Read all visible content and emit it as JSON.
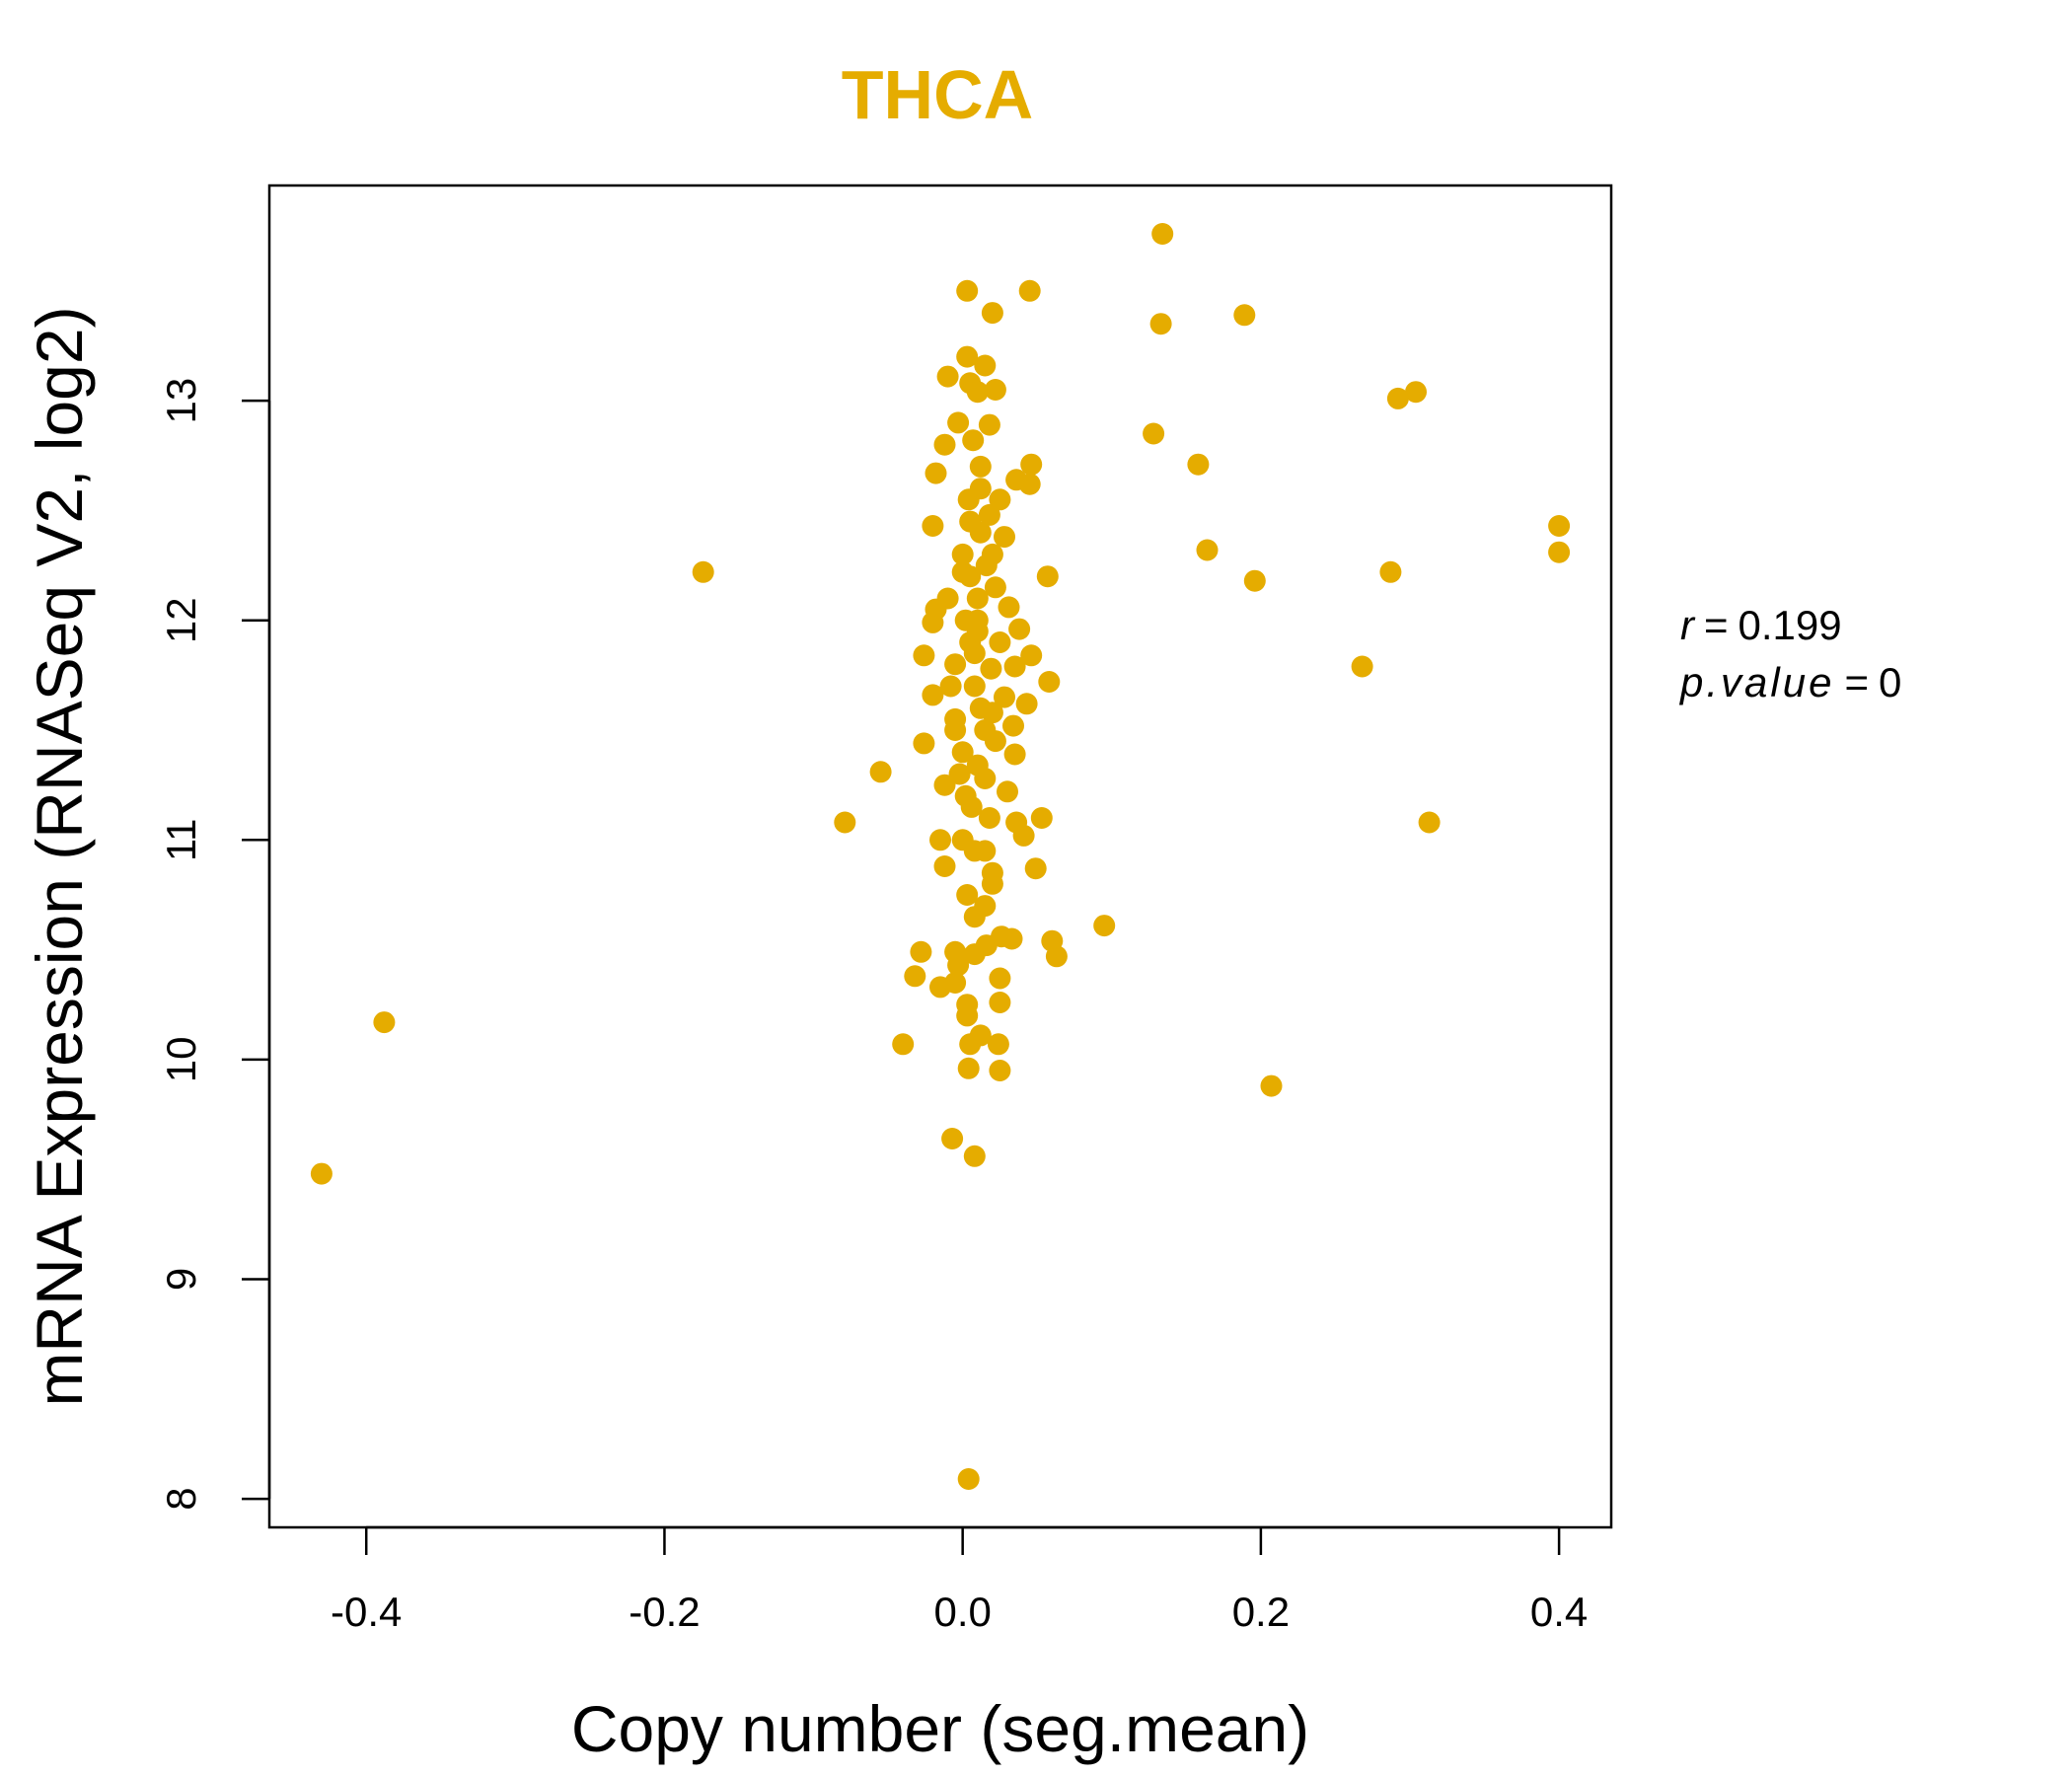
{
  "chart_data": {
    "type": "scatter",
    "title": "THCA",
    "title_color": "#E5AC00",
    "point_color": "#E5AC00",
    "xlabel": "Copy number (seg.mean)",
    "ylabel": "mRNA Expression (RNASeq V2, log2)",
    "xlim": [
      -0.465,
      0.435
    ],
    "ylim": [
      7.87,
      13.98
    ],
    "xticks": [
      -0.4,
      -0.2,
      0.0,
      0.2,
      0.4
    ],
    "xtick_labels": [
      "-0.4",
      "-0.2",
      "0.0",
      "0.2",
      "0.4"
    ],
    "yticks": [
      8,
      9,
      10,
      11,
      12,
      13
    ],
    "ytick_labels": [
      "8",
      "9",
      "10",
      "11",
      "12",
      "13"
    ],
    "grid": false,
    "stats": {
      "r_symbol": "r",
      "r_value": "0.199",
      "p_symbol": "p.value",
      "p_value": "0"
    },
    "points": [
      [
        -0.43,
        9.48
      ],
      [
        -0.388,
        10.17
      ],
      [
        -0.174,
        12.22
      ],
      [
        -0.079,
        11.08
      ],
      [
        -0.055,
        11.31
      ],
      [
        -0.04,
        10.07
      ],
      [
        0.134,
        13.76
      ],
      [
        0.133,
        13.35
      ],
      [
        0.189,
        13.39
      ],
      [
        0.128,
        12.85
      ],
      [
        0.158,
        12.71
      ],
      [
        0.164,
        12.32
      ],
      [
        0.196,
        12.18
      ],
      [
        0.287,
        12.22
      ],
      [
        0.268,
        11.79
      ],
      [
        0.292,
        13.01
      ],
      [
        0.304,
        13.04
      ],
      [
        0.4,
        12.43
      ],
      [
        0.4,
        12.31
      ],
      [
        0.313,
        11.08
      ],
      [
        0.207,
        9.88
      ],
      [
        0.095,
        10.61
      ],
      [
        0.003,
        13.5
      ],
      [
        0.045,
        13.5
      ],
      [
        0.02,
        13.4
      ],
      [
        0.003,
        13.2
      ],
      [
        0.015,
        13.16
      ],
      [
        -0.01,
        13.11
      ],
      [
        0.005,
        13.08
      ],
      [
        0.022,
        13.05
      ],
      [
        0.01,
        13.04
      ],
      [
        -0.003,
        12.9
      ],
      [
        0.018,
        12.89
      ],
      [
        0.007,
        12.82
      ],
      [
        -0.012,
        12.8
      ],
      [
        0.046,
        12.71
      ],
      [
        0.045,
        12.62
      ],
      [
        0.036,
        12.64
      ],
      [
        -0.018,
        12.67
      ],
      [
        0.012,
        12.6
      ],
      [
        0.028,
        12.38
      ],
      [
        0.005,
        12.45
      ],
      [
        0.018,
        12.48
      ],
      [
        -0.02,
        12.43
      ],
      [
        0.057,
        12.2
      ],
      [
        0.022,
        12.15
      ],
      [
        0.0,
        12.22
      ],
      [
        0.031,
        12.06
      ],
      [
        0.01,
        12.1
      ],
      [
        -0.018,
        12.05
      ],
      [
        0.038,
        11.96
      ],
      [
        -0.02,
        11.99
      ],
      [
        0.005,
        11.9
      ],
      [
        0.046,
        11.84
      ],
      [
        -0.026,
        11.84
      ],
      [
        0.019,
        11.78
      ],
      [
        0.035,
        11.79
      ],
      [
        0.058,
        11.72
      ],
      [
        0.008,
        11.7
      ],
      [
        -0.02,
        11.66
      ],
      [
        0.043,
        11.62
      ],
      [
        0.02,
        11.58
      ],
      [
        -0.005,
        11.5
      ],
      [
        0.034,
        11.52
      ],
      [
        0.0,
        11.4
      ],
      [
        0.035,
        11.39
      ],
      [
        -0.026,
        11.44
      ],
      [
        0.01,
        11.34
      ],
      [
        0.03,
        11.22
      ],
      [
        0.015,
        11.28
      ],
      [
        0.053,
        11.1
      ],
      [
        0.036,
        11.08
      ],
      [
        0.041,
        11.02
      ],
      [
        -0.015,
        11.0
      ],
      [
        0.008,
        10.95
      ],
      [
        0.049,
        10.87
      ],
      [
        0.02,
        10.85
      ],
      [
        -0.012,
        10.88
      ],
      [
        0.003,
        10.75
      ],
      [
        0.015,
        10.7
      ],
      [
        0.026,
        10.56
      ],
      [
        0.033,
        10.55
      ],
      [
        0.06,
        10.54
      ],
      [
        0.063,
        10.47
      ],
      [
        0.016,
        10.52
      ],
      [
        -0.005,
        10.49
      ],
      [
        -0.028,
        10.49
      ],
      [
        0.008,
        10.48
      ],
      [
        -0.003,
        10.43
      ],
      [
        -0.032,
        10.38
      ],
      [
        -0.015,
        10.33
      ],
      [
        0.025,
        10.37
      ],
      [
        -0.005,
        10.35
      ],
      [
        0.003,
        10.25
      ],
      [
        0.025,
        10.26
      ],
      [
        0.003,
        10.2
      ],
      [
        0.012,
        10.11
      ],
      [
        0.005,
        10.07
      ],
      [
        0.024,
        10.07
      ],
      [
        0.004,
        9.96
      ],
      [
        0.025,
        9.95
      ],
      [
        -0.007,
        9.64
      ],
      [
        0.008,
        9.56
      ],
      [
        0.004,
        8.09
      ],
      [
        0.0,
        12.3
      ],
      [
        0.005,
        12.2
      ],
      [
        0.01,
        12.0
      ],
      [
        -0.005,
        11.8
      ],
      [
        0.012,
        11.6
      ],
      [
        0.002,
        11.2
      ],
      [
        0.015,
        11.5
      ],
      [
        -0.008,
        11.7
      ],
      [
        0.02,
        12.3
      ],
      [
        0.008,
        11.85
      ],
      [
        0.0,
        11.0
      ],
      [
        0.018,
        11.1
      ],
      [
        -0.01,
        12.1
      ],
      [
        0.025,
        11.9
      ],
      [
        0.004,
        12.55
      ],
      [
        0.012,
        12.4
      ],
      [
        -0.002,
        11.3
      ],
      [
        0.022,
        11.45
      ],
      [
        0.006,
        11.15
      ],
      [
        0.015,
        10.95
      ],
      [
        -0.005,
        11.55
      ],
      [
        0.01,
        11.95
      ],
      [
        0.028,
        11.65
      ],
      [
        0.002,
        12.0
      ],
      [
        0.016,
        12.25
      ],
      [
        -0.012,
        11.25
      ],
      [
        0.02,
        10.8
      ],
      [
        0.008,
        10.65
      ],
      [
        0.012,
        12.7
      ],
      [
        0.025,
        12.55
      ]
    ]
  }
}
